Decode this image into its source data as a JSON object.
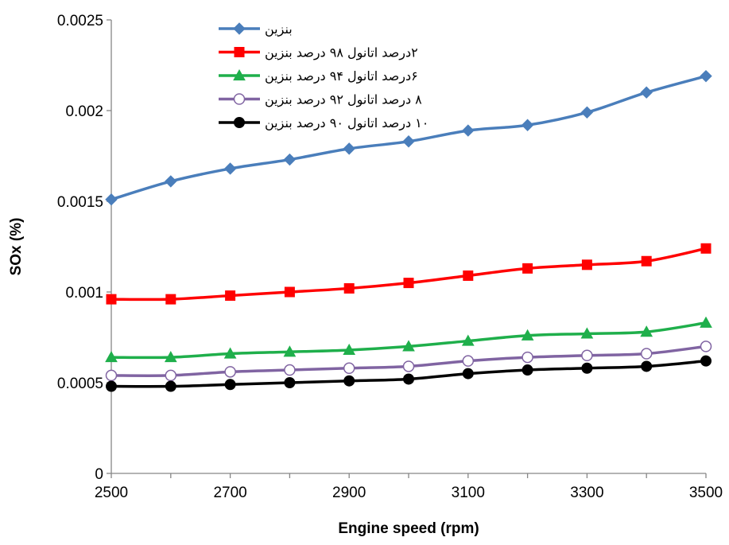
{
  "chart_data": {
    "type": "line",
    "title": "",
    "xlabel": "Engine speed (rpm)",
    "ylabel": "SOx (%)",
    "xlim": [
      2500,
      3500
    ],
    "ylim": [
      0,
      0.0025
    ],
    "x_ticks": [
      "2500",
      "2700",
      "2900",
      "3100",
      "3300",
      "3500"
    ],
    "y_ticks": [
      "0",
      "0.0005",
      "0.001",
      "0.0015",
      "0.002",
      "0.0025"
    ],
    "grid": false,
    "legend_position": "top-center",
    "x": [
      2500,
      2600,
      2700,
      2800,
      2900,
      3000,
      3100,
      3200,
      3300,
      3400,
      3500
    ],
    "series": [
      {
        "name": "بنزین",
        "color": "#4a7ebb",
        "marker": "diamond",
        "values": [
          0.00151,
          0.00161,
          0.00168,
          0.00173,
          0.00179,
          0.00183,
          0.00189,
          0.00192,
          0.00199,
          0.0021,
          0.00219
        ]
      },
      {
        "name": "۲درصد اتانول ۹۸ درصد بنزین",
        "color": "#ff0000",
        "marker": "square",
        "values": [
          0.00096,
          0.00096,
          0.00098,
          0.001,
          0.00102,
          0.00105,
          0.00109,
          0.00113,
          0.00115,
          0.00117,
          0.00124
        ]
      },
      {
        "name": "۶درصد اتانول ۹۴ درصد بنزین",
        "color": "#1faf4b",
        "marker": "triangle",
        "values": [
          0.00064,
          0.00064,
          0.00066,
          0.00067,
          0.00068,
          0.0007,
          0.00073,
          0.00076,
          0.00077,
          0.00078,
          0.00083
        ]
      },
      {
        "name": "۸ درصد اتانول ۹۲ درصد بنزین",
        "color": "#8064a2",
        "marker": "circle-open",
        "values": [
          0.00054,
          0.00054,
          0.00056,
          0.00057,
          0.00058,
          0.00059,
          0.00062,
          0.00064,
          0.00065,
          0.00066,
          0.0007
        ]
      },
      {
        "name": "۱۰ درصد اتانول ۹۰ درصد بنزین",
        "color": "#000000",
        "marker": "circle",
        "values": [
          0.00048,
          0.00048,
          0.00049,
          0.0005,
          0.00051,
          0.00052,
          0.00055,
          0.00057,
          0.00058,
          0.00059,
          0.00062
        ]
      }
    ]
  }
}
